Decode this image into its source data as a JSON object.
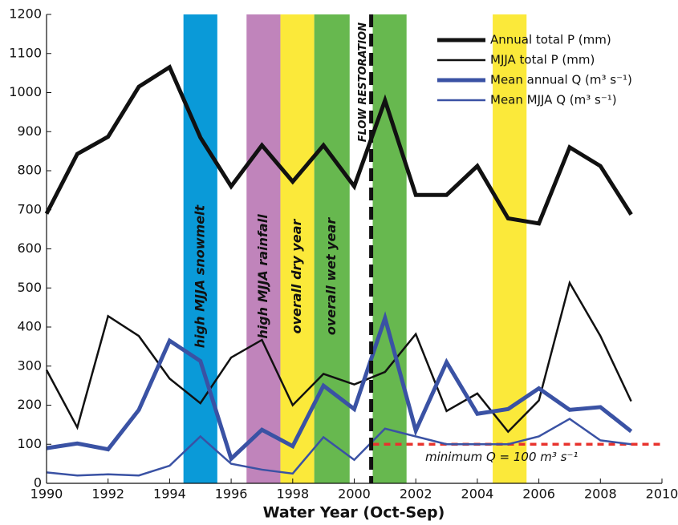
{
  "chart_data": {
    "type": "line",
    "x_label": "Water Year (Oct-Sep)",
    "x": [
      1990,
      1991,
      1992,
      1993,
      1994,
      1995,
      1996,
      1997,
      1998,
      1999,
      2000,
      2001,
      2002,
      2003,
      2004,
      2005,
      2006,
      2007,
      2008,
      2009
    ],
    "series": [
      {
        "name": "Annual total P (mm)",
        "color": "#111111",
        "linewidth": 5,
        "values": [
          690,
          843,
          887,
          1015,
          1065,
          885,
          760,
          865,
          772,
          865,
          760,
          980,
          738,
          738,
          812,
          678,
          665,
          860,
          812,
          688
        ]
      },
      {
        "name": "MJJA total P (mm)",
        "color": "#111111",
        "linewidth": 2.5,
        "values": [
          290,
          143,
          428,
          377,
          268,
          205,
          322,
          367,
          200,
          280,
          253,
          285,
          382,
          185,
          230,
          132,
          212,
          513,
          377,
          210
        ]
      },
      {
        "name": "Mean annual Q (m³ s⁻¹)",
        "color": "#3a52a4",
        "linewidth": 5,
        "values": [
          90,
          102,
          87,
          188,
          365,
          313,
          63,
          137,
          95,
          250,
          190,
          423,
          135,
          310,
          178,
          190,
          243,
          188,
          195,
          133
        ]
      },
      {
        "name": "Mean MJJA Q (m³ s⁻¹)",
        "color": "#3a52a4",
        "linewidth": 2.5,
        "values": [
          28,
          20,
          23,
          20,
          45,
          120,
          50,
          35,
          25,
          118,
          60,
          140,
          120,
          100,
          100,
          100,
          120,
          165,
          110,
          100
        ]
      }
    ],
    "bands": [
      {
        "x0": 1994.45,
        "x1": 1995.55,
        "color": "#0a9ad8",
        "label": "high MJJA snowmelt"
      },
      {
        "x0": 1996.5,
        "x1": 1997.6,
        "color": "#c084bb",
        "label": "high MJJA rainfall"
      },
      {
        "x0": 1997.6,
        "x1": 1998.7,
        "color": "#fbe93a",
        "label": "overall dry year"
      },
      {
        "x0": 1998.7,
        "x1": 1999.85,
        "color": "#67b84f",
        "label": "overall wet year"
      },
      {
        "x0": 2000.6,
        "x1": 2001.7,
        "color": "#67b84f"
      },
      {
        "x0": 2004.5,
        "x1": 2005.6,
        "color": "#fbe93a"
      }
    ],
    "vline": {
      "x": 2000.55,
      "label": "FLOW RESTORATION",
      "color": "#111111"
    },
    "threshold": {
      "y": 100,
      "x0": 2000.6,
      "label": "minimum Q = 100 m³ s⁻¹",
      "color": "#e8322c"
    },
    "xlim": [
      1990,
      2010
    ],
    "ylim": [
      0,
      1200
    ],
    "xticks": [
      1990,
      1992,
      1994,
      1996,
      1998,
      2000,
      2002,
      2004,
      2006,
      2008,
      2010
    ],
    "yticks": [
      0,
      100,
      200,
      300,
      400,
      500,
      600,
      700,
      800,
      900,
      1000,
      1100,
      1200
    ],
    "grid": false,
    "legend": "upper right"
  }
}
